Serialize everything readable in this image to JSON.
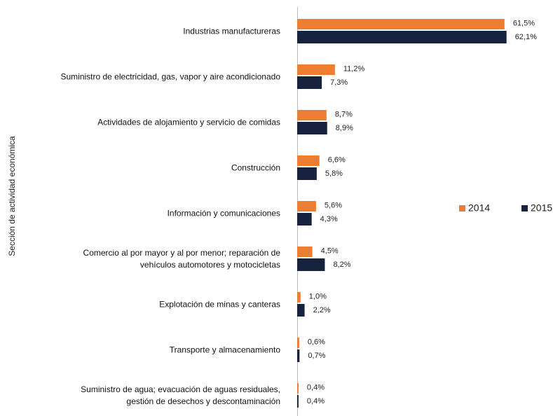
{
  "chart_data": {
    "type": "bar",
    "orientation": "horizontal",
    "y_axis_label": "Sección de actividad económica",
    "categories": [
      "Industrias manufactureras",
      "Suministro de electricidad, gas, vapor y aire acondicionado",
      "Actividades de alojamiento y servicio de comidas",
      "Construcción",
      "Información y comunicaciones",
      "Comercio al por mayor y al por menor; reparación de\nvehículos automotores y motocicletas",
      "Explotación de minas y canteras",
      "Transporte y almacenamiento",
      "Suministro de agua; evacuación de aguas residuales,\ngestión de desechos y descontaminación"
    ],
    "series": [
      {
        "name": "2014",
        "color": "#ed7d31",
        "values": [
          61.5,
          11.2,
          8.7,
          6.6,
          5.6,
          4.5,
          1.0,
          0.6,
          0.4
        ],
        "value_labels": [
          "61,5%",
          "11,2%",
          "8,7%",
          "6,6%",
          "5,6%",
          "4,5%",
          "1,0%",
          "0,6%",
          "0,4%"
        ]
      },
      {
        "name": "2015",
        "color": "#17223f",
        "values": [
          62.1,
          7.3,
          8.9,
          5.8,
          4.3,
          8.2,
          2.2,
          0.7,
          0.4
        ],
        "value_labels": [
          "62,1%",
          "7,3%",
          "8,9%",
          "5,8%",
          "4,3%",
          "8,2%",
          "2,2%",
          "0,7%",
          "0,4%"
        ]
      }
    ],
    "xlim": [
      0,
      75
    ],
    "legend": "right"
  }
}
